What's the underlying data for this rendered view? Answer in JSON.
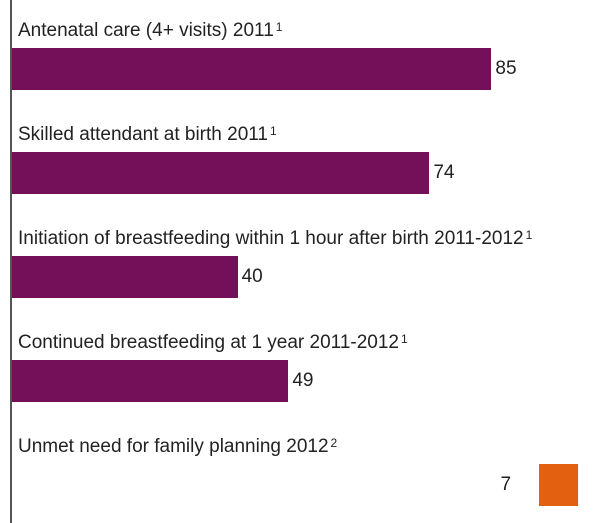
{
  "chart_data": {
    "type": "bar",
    "orientation": "horizontal",
    "xlim": [
      0,
      100
    ],
    "items": [
      {
        "label": "Antenatal care (4+ visits) 2011",
        "note": "1",
        "value": 85,
        "display": "85",
        "color": "#741059",
        "direction": "right"
      },
      {
        "label": "Skilled attendant at birth 2011",
        "note": "1",
        "value": 74,
        "display": "74",
        "color": "#741059",
        "direction": "right"
      },
      {
        "label": "Initiation of breastfeeding within 1 hour after birth 2011-2012",
        "note": "1",
        "value": 40,
        "display": "40",
        "color": "#741059",
        "direction": "right"
      },
      {
        "label": "Continued breastfeeding at 1 year 2011-2012",
        "note": "1",
        "value": 49,
        "display": "49",
        "color": "#741059",
        "direction": "right"
      },
      {
        "label": "Unmet need for family planning 2012",
        "note": "2",
        "value": 7,
        "display": "7",
        "color": "#e2600f",
        "direction": "left"
      }
    ]
  }
}
